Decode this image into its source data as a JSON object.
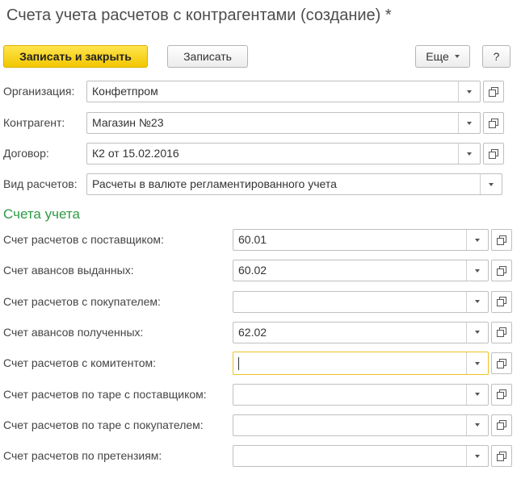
{
  "header": {
    "title": "Счета учета расчетов с контрагентами (создание) *"
  },
  "toolbar": {
    "save_close": "Записать и закрыть",
    "save": "Записать",
    "more": "Еще",
    "help": "?"
  },
  "fields": [
    {
      "label": "Организация:",
      "value": "Конфетпром"
    },
    {
      "label": "Контрагент:",
      "value": "Магазин №23"
    },
    {
      "label": "Договор:",
      "value": "К2 от 15.02.2016"
    },
    {
      "label": "Вид расчетов:",
      "value": "Расчеты в валюте регламентированного учета"
    }
  ],
  "section": {
    "title": "Счета учета"
  },
  "accounts": [
    {
      "label": "Счет расчетов с поставщиком:",
      "value": "60.01"
    },
    {
      "label": "Счет авансов выданных:",
      "value": "60.02"
    },
    {
      "label": "Счет расчетов с покупателем:"
    },
    {
      "label": "Счет авансов полученных:",
      "value": "62.02"
    },
    {
      "label": "Счет расчетов с комитентом:"
    },
    {
      "label": "Счет расчетов по таре с поставщиком:"
    },
    {
      "label": "Счет расчетов по таре с покупателем:"
    },
    {
      "label": "Счет расчетов по претензиям:"
    }
  ]
}
